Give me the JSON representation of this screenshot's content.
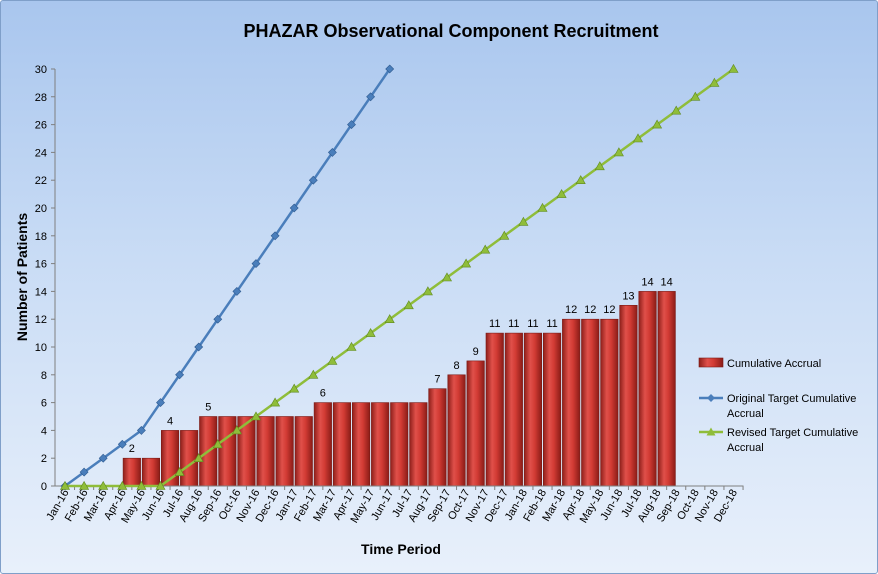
{
  "chart_data": {
    "type": "bar",
    "title": "PHAZAR  Observational Component Recruitment",
    "xlabel": "Time Period",
    "ylabel": "Number of Patients",
    "ylim": [
      0,
      30
    ],
    "ytick_step": 2,
    "grid": false,
    "legend_position": "right",
    "categories": [
      "Jan-16",
      "Feb-16",
      "Mar-16",
      "Apr-16",
      "May-16",
      "Jun-16",
      "Jul-16",
      "Aug-16",
      "Sep-16",
      "Oct-16",
      "Nov-16",
      "Dec-16",
      "Jan-17",
      "Feb-17",
      "Mar-17",
      "Apr-17",
      "May-17",
      "Jun-17",
      "Jul-17",
      "Aug-17",
      "Sep-17",
      "Oct-17",
      "Nov-17",
      "Dec-17",
      "Jan-18",
      "Feb-18",
      "Mar-18",
      "Apr-18",
      "May-18",
      "Jun-18",
      "Jul-18",
      "Aug-18",
      "Sep-18",
      "Oct-18",
      "Nov-18",
      "Dec-18"
    ],
    "series": [
      {
        "name": "Cumulative Accrual",
        "kind": "bar",
        "color": "#c0302a",
        "values": [
          0,
          0,
          0,
          2,
          2,
          4,
          4,
          5,
          5,
          5,
          5,
          5,
          5,
          6,
          6,
          6,
          6,
          6,
          6,
          7,
          8,
          9,
          11,
          11,
          11,
          11,
          12,
          12,
          12,
          13,
          14,
          14,
          null,
          null,
          null,
          null
        ],
        "data_labels": [
          "",
          "",
          "",
          "2",
          "",
          "4",
          "",
          "5",
          "",
          "",
          "",
          "",
          "",
          "6",
          "",
          "",
          "",
          "",
          "",
          "7",
          "8",
          "9",
          "11",
          "11",
          "11",
          "11",
          "12",
          "12",
          "12",
          "13",
          "14",
          "14",
          "",
          "",
          "",
          ""
        ]
      },
      {
        "name": "Original Target Cumulative Accrual",
        "legend_lines": [
          "Original Target Cumulative",
          "Accrual"
        ],
        "kind": "line",
        "marker": "diamond",
        "color": "#4a7ebb",
        "values": [
          0,
          1,
          2,
          3,
          4,
          6,
          8,
          10,
          12,
          14,
          16,
          18,
          20,
          22,
          24,
          26,
          28,
          30,
          null,
          null,
          null,
          null,
          null,
          null,
          null,
          null,
          null,
          null,
          null,
          null,
          null,
          null,
          null,
          null,
          null,
          null
        ]
      },
      {
        "name": "Revised Target Cumulative Accrual",
        "legend_lines": [
          "Revised Target Cumulative",
          "Accrual"
        ],
        "kind": "line",
        "marker": "triangle",
        "color": "#8fbd3a",
        "values": [
          0,
          0,
          0,
          0,
          0,
          0,
          1,
          2,
          3,
          4,
          5,
          6,
          7,
          8,
          9,
          10,
          11,
          12,
          13,
          14,
          15,
          16,
          17,
          18,
          19,
          20,
          21,
          22,
          23,
          24,
          25,
          26,
          27,
          28,
          29,
          30
        ]
      }
    ]
  }
}
